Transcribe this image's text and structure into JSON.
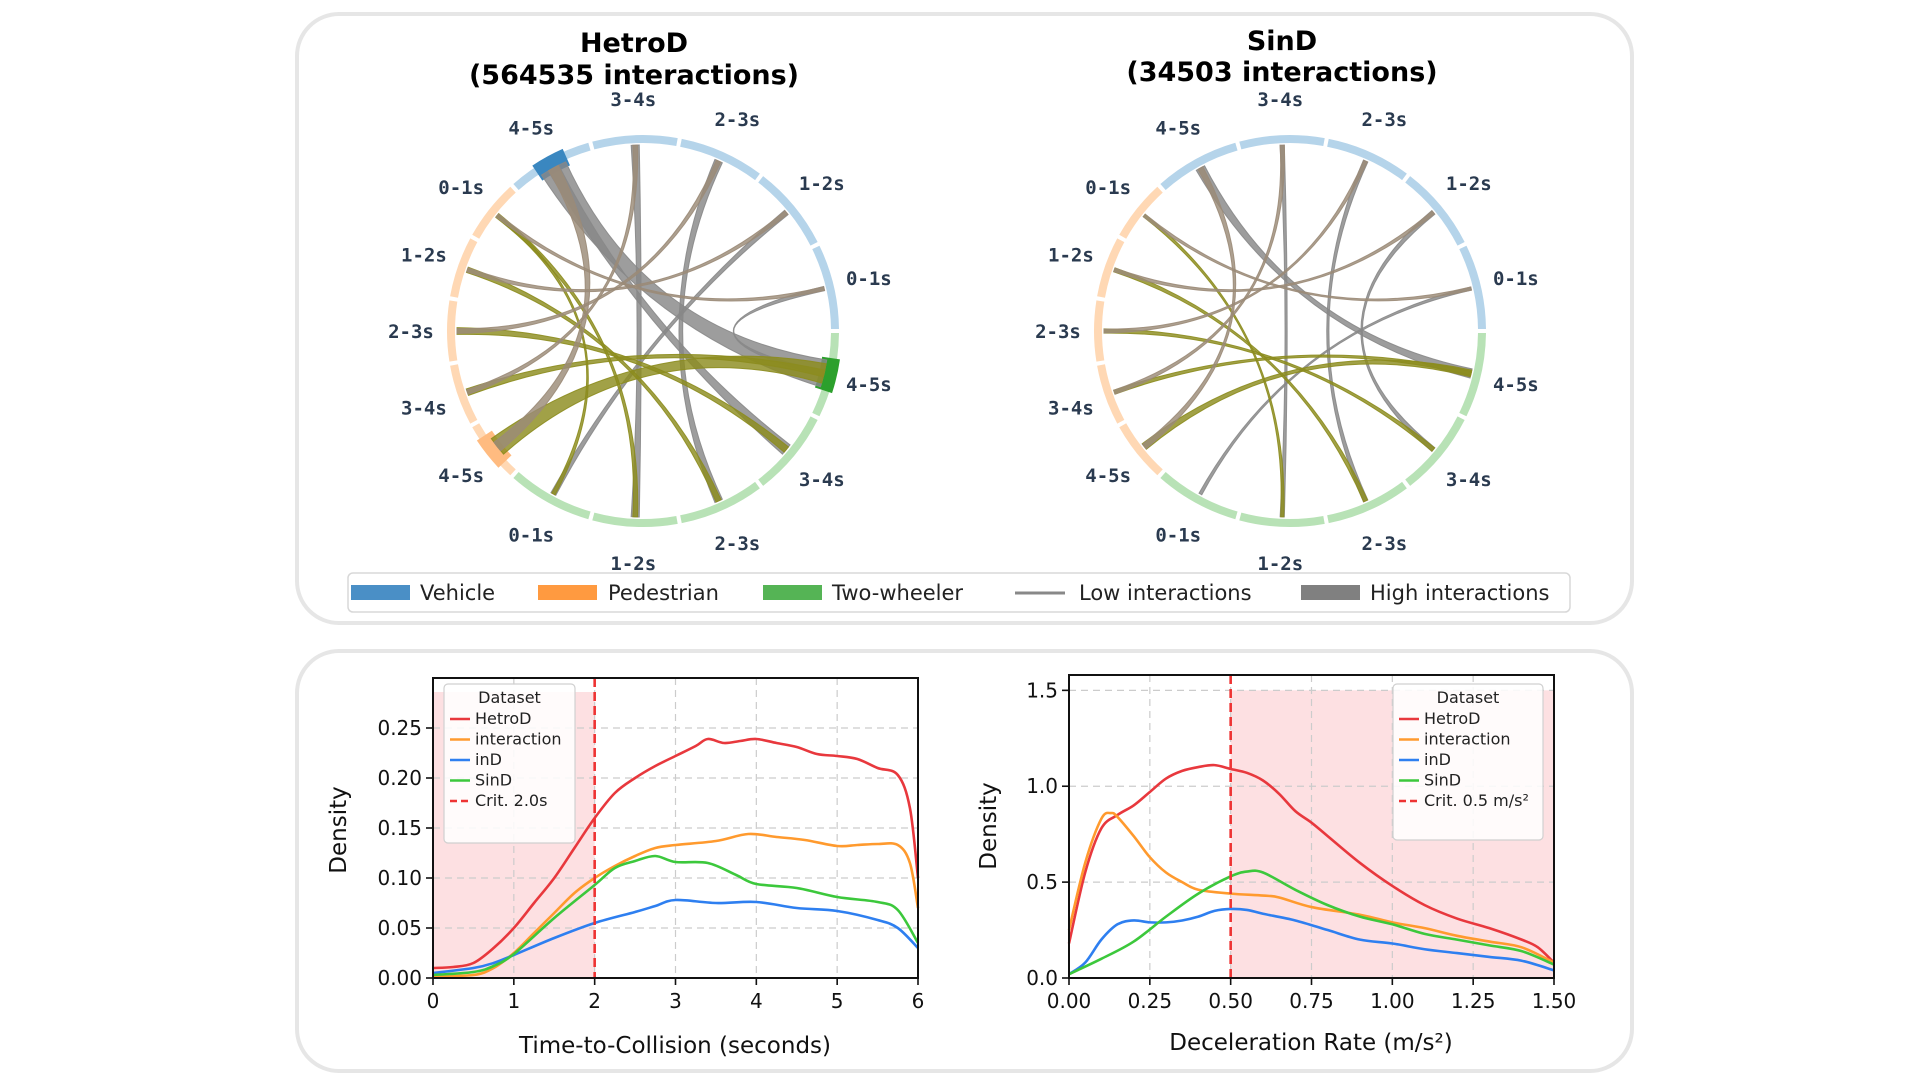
{
  "chord_diagrams": [
    {
      "title_line1": "HetroD",
      "title_line2": "(564535 interactions)",
      "highlight": [
        [
          "vehicle",
          4
        ],
        [
          "two_wheeler",
          4
        ],
        [
          "pedestrian",
          4
        ]
      ],
      "chords": [
        {
          "from": [
            "vehicle",
            4
          ],
          "to": [
            "two_wheeler",
            4
          ],
          "weight": 1.0
        },
        {
          "from": [
            "vehicle",
            4
          ],
          "to": [
            "two_wheeler",
            3
          ],
          "weight": 0.4
        },
        {
          "from": [
            "vehicle",
            3
          ],
          "to": [
            "two_wheeler",
            1
          ],
          "weight": 0.25
        },
        {
          "from": [
            "vehicle",
            2
          ],
          "to": [
            "two_wheeler",
            2
          ],
          "weight": 0.25
        },
        {
          "from": [
            "vehicle",
            1
          ],
          "to": [
            "two_wheeler",
            0
          ],
          "weight": 0.15
        },
        {
          "from": [
            "vehicle",
            0
          ],
          "to": [
            "two_wheeler",
            4
          ],
          "weight": 0.1
        },
        {
          "from": [
            "pedestrian",
            4
          ],
          "to": [
            "two_wheeler",
            4
          ],
          "weight": 0.7
        },
        {
          "from": [
            "pedestrian",
            0
          ],
          "to": [
            "two_wheeler",
            1
          ],
          "weight": 0.12
        },
        {
          "from": [
            "pedestrian",
            1
          ],
          "to": [
            "two_wheeler",
            2
          ],
          "weight": 0.15
        },
        {
          "from": [
            "pedestrian",
            2
          ],
          "to": [
            "two_wheeler",
            3
          ],
          "weight": 0.2
        },
        {
          "from": [
            "pedestrian",
            3
          ],
          "to": [
            "two_wheeler",
            4
          ],
          "weight": 0.2
        },
        {
          "from": [
            "pedestrian",
            0
          ],
          "to": [
            "two_wheeler",
            0
          ],
          "weight": 0.08
        },
        {
          "from": [
            "pedestrian",
            4
          ],
          "to": [
            "vehicle",
            4
          ],
          "weight": 0.35
        },
        {
          "from": [
            "pedestrian",
            0
          ],
          "to": [
            "vehicle",
            0
          ],
          "weight": 0.08
        },
        {
          "from": [
            "pedestrian",
            1
          ],
          "to": [
            "vehicle",
            1
          ],
          "weight": 0.1
        },
        {
          "from": [
            "pedestrian",
            2
          ],
          "to": [
            "vehicle",
            2
          ],
          "weight": 0.12
        },
        {
          "from": [
            "pedestrian",
            3
          ],
          "to": [
            "vehicle",
            3
          ],
          "weight": 0.12
        }
      ]
    },
    {
      "title_line1": "SinD",
      "title_line2": "(34503 interactions)",
      "highlight": [],
      "chords": [
        {
          "from": [
            "vehicle",
            4
          ],
          "to": [
            "two_wheeler",
            4
          ],
          "weight": 0.3
        },
        {
          "from": [
            "vehicle",
            3
          ],
          "to": [
            "two_wheeler",
            1
          ],
          "weight": 0.1
        },
        {
          "from": [
            "vehicle",
            2
          ],
          "to": [
            "two_wheeler",
            2
          ],
          "weight": 0.12
        },
        {
          "from": [
            "vehicle",
            1
          ],
          "to": [
            "two_wheeler",
            3
          ],
          "weight": 0.12
        },
        {
          "from": [
            "vehicle",
            0
          ],
          "to": [
            "two_wheeler",
            0
          ],
          "weight": 0.06
        },
        {
          "from": [
            "pedestrian",
            4
          ],
          "to": [
            "two_wheeler",
            4
          ],
          "weight": 0.2
        },
        {
          "from": [
            "pedestrian",
            0
          ],
          "to": [
            "two_wheeler",
            1
          ],
          "weight": 0.06
        },
        {
          "from": [
            "pedestrian",
            1
          ],
          "to": [
            "two_wheeler",
            2
          ],
          "weight": 0.1
        },
        {
          "from": [
            "pedestrian",
            2
          ],
          "to": [
            "two_wheeler",
            3
          ],
          "weight": 0.1
        },
        {
          "from": [
            "pedestrian",
            3
          ],
          "to": [
            "two_wheeler",
            4
          ],
          "weight": 0.1
        },
        {
          "from": [
            "pedestrian",
            4
          ],
          "to": [
            "vehicle",
            4
          ],
          "weight": 0.15
        },
        {
          "from": [
            "pedestrian",
            0
          ],
          "to": [
            "vehicle",
            0
          ],
          "weight": 0.06
        },
        {
          "from": [
            "pedestrian",
            1
          ],
          "to": [
            "vehicle",
            1
          ],
          "weight": 0.08
        },
        {
          "from": [
            "pedestrian",
            2
          ],
          "to": [
            "vehicle",
            2
          ],
          "weight": 0.08
        },
        {
          "from": [
            "pedestrian",
            3
          ],
          "to": [
            "vehicle",
            3
          ],
          "weight": 0.1
        }
      ]
    }
  ],
  "groups": {
    "vehicle": {
      "bins": [
        "0-1s",
        "1-2s",
        "2-3s",
        "3-4s",
        "4-5s"
      ],
      "color": "#b5d4ea",
      "strong": "#3a87c0"
    },
    "pedestrian": {
      "bins": [
        "0-1s",
        "1-2s",
        "2-3s",
        "3-4s",
        "4-5s"
      ],
      "color": "#ffd8b4",
      "strong": "#ffbb80"
    },
    "two_wheeler": {
      "bins": [
        "0-1s",
        "1-2s",
        "2-3s",
        "3-4s",
        "4-5s"
      ],
      "color": "#b8e2b6",
      "strong": "#2ca02c"
    }
  },
  "chord_colors": {
    "vehicle-two_wheeler": "#2e9478",
    "pedestrian-two_wheeler": "#8c8c1e",
    "pedestrian-vehicle": "#9b8b78"
  },
  "legend": {
    "items": [
      {
        "label": "Vehicle",
        "kind": "patch",
        "color": "#4a8fc6"
      },
      {
        "label": "Pedestrian",
        "kind": "patch",
        "color": "#ff9a40"
      },
      {
        "label": "Two-wheeler",
        "kind": "patch",
        "color": "#55b455"
      },
      {
        "label": "Low interactions",
        "kind": "line",
        "color": "#888888"
      },
      {
        "label": "High interactions",
        "kind": "patch",
        "color": "#808080"
      }
    ]
  },
  "chart_data": [
    {
      "type": "line",
      "xlabel": "Time-to-Collision (seconds)",
      "ylabel": "Density",
      "xlim": [
        0,
        6
      ],
      "ylim": [
        0,
        0.3
      ],
      "xticks": [
        0,
        1,
        2,
        3,
        4,
        5,
        6
      ],
      "xtick_labels": [
        "0",
        "1",
        "2",
        "3",
        "4",
        "5",
        "6"
      ],
      "yticks": [
        0,
        0.05,
        0.1,
        0.15,
        0.2,
        0.25
      ],
      "ytick_labels": [
        "0.00",
        "0.05",
        "0.10",
        "0.15",
        "0.20",
        "0.25"
      ],
      "grid": true,
      "legend_title": "Dataset",
      "legend_position": "upper-left",
      "critical": {
        "x": 2.0,
        "label": "Crit. 2.0s",
        "shade": [
          0,
          2
        ],
        "color": "#ee3333"
      },
      "series": [
        {
          "name": "HetroD",
          "color": "#e8383d",
          "x": [
            0,
            0.25,
            0.5,
            0.75,
            1,
            1.25,
            1.5,
            1.75,
            2,
            2.25,
            2.5,
            2.75,
            3,
            3.25,
            3.4,
            3.6,
            3.8,
            4,
            4.25,
            4.5,
            4.75,
            5,
            5.25,
            5.5,
            5.75,
            5.9,
            6
          ],
          "y": [
            0.01,
            0.011,
            0.015,
            0.03,
            0.05,
            0.075,
            0.1,
            0.13,
            0.16,
            0.185,
            0.2,
            0.212,
            0.222,
            0.232,
            0.239,
            0.235,
            0.237,
            0.239,
            0.235,
            0.231,
            0.224,
            0.222,
            0.219,
            0.21,
            0.203,
            0.17,
            0.1
          ]
        },
        {
          "name": "interaction",
          "color": "#ff9a2e",
          "x": [
            0,
            0.5,
            0.75,
            1,
            1.25,
            1.5,
            1.75,
            2,
            2.25,
            2.5,
            2.75,
            3,
            3.5,
            3.9,
            4.25,
            4.6,
            5,
            5.25,
            5.5,
            5.75,
            5.9,
            6
          ],
          "y": [
            0.002,
            0.003,
            0.01,
            0.025,
            0.045,
            0.065,
            0.085,
            0.1,
            0.112,
            0.122,
            0.13,
            0.133,
            0.137,
            0.144,
            0.141,
            0.138,
            0.132,
            0.133,
            0.134,
            0.133,
            0.115,
            0.07
          ]
        },
        {
          "name": "inD",
          "color": "#2e7ff0",
          "x": [
            0,
            0.5,
            0.75,
            1,
            1.5,
            2,
            2.5,
            2.75,
            3,
            3.5,
            4,
            4.5,
            5,
            5.5,
            5.75,
            6
          ],
          "y": [
            0.005,
            0.01,
            0.015,
            0.023,
            0.04,
            0.055,
            0.066,
            0.072,
            0.078,
            0.075,
            0.076,
            0.07,
            0.067,
            0.058,
            0.05,
            0.03
          ]
        },
        {
          "name": "SinD",
          "color": "#3cc83c",
          "x": [
            0,
            0.5,
            0.75,
            1,
            1.5,
            2,
            2.25,
            2.5,
            2.75,
            3,
            3.4,
            3.75,
            4,
            4.5,
            5,
            5.5,
            5.75,
            6
          ],
          "y": [
            0.003,
            0.006,
            0.012,
            0.024,
            0.06,
            0.093,
            0.11,
            0.117,
            0.122,
            0.116,
            0.115,
            0.103,
            0.094,
            0.09,
            0.081,
            0.076,
            0.068,
            0.035
          ]
        }
      ]
    },
    {
      "type": "line",
      "xlabel": "Deceleration Rate (m/s²)",
      "ylabel": "Density",
      "xlim": [
        0,
        1.5
      ],
      "ylim": [
        0,
        1.58
      ],
      "xticks": [
        0,
        0.25,
        0.5,
        0.75,
        1.0,
        1.25,
        1.5
      ],
      "xtick_labels": [
        "0.00",
        "0.25",
        "0.50",
        "0.75",
        "1.00",
        "1.25",
        "1.50"
      ],
      "yticks": [
        0,
        0.5,
        1.0,
        1.5
      ],
      "ytick_labels": [
        "0.0",
        "0.5",
        "1.0",
        "1.5"
      ],
      "grid": true,
      "legend_title": "Dataset",
      "legend_position": "upper-right",
      "critical": {
        "x": 0.5,
        "label": "Crit. 0.5 m/s²",
        "shade": [
          0.5,
          1.5
        ],
        "color": "#ee3333"
      },
      "series": [
        {
          "name": "HetroD",
          "color": "#e8383d",
          "x": [
            0,
            0.05,
            0.1,
            0.15,
            0.2,
            0.25,
            0.3,
            0.35,
            0.4,
            0.45,
            0.5,
            0.55,
            0.6,
            0.65,
            0.7,
            0.75,
            0.8,
            0.9,
            1.0,
            1.1,
            1.2,
            1.3,
            1.4,
            1.45,
            1.5
          ],
          "y": [
            0.18,
            0.55,
            0.78,
            0.85,
            0.9,
            0.97,
            1.04,
            1.08,
            1.1,
            1.11,
            1.09,
            1.07,
            1.03,
            0.96,
            0.87,
            0.81,
            0.74,
            0.6,
            0.48,
            0.38,
            0.31,
            0.26,
            0.2,
            0.16,
            0.08
          ]
        },
        {
          "name": "interaction",
          "color": "#ff9a2e",
          "x": [
            0,
            0.05,
            0.1,
            0.13,
            0.15,
            0.2,
            0.25,
            0.3,
            0.35,
            0.4,
            0.5,
            0.6,
            0.65,
            0.75,
            0.9,
            1.0,
            1.1,
            1.2,
            1.3,
            1.4,
            1.5
          ],
          "y": [
            0.25,
            0.6,
            0.83,
            0.86,
            0.84,
            0.74,
            0.63,
            0.55,
            0.5,
            0.46,
            0.44,
            0.43,
            0.42,
            0.37,
            0.33,
            0.29,
            0.26,
            0.22,
            0.19,
            0.16,
            0.08
          ]
        },
        {
          "name": "inD",
          "color": "#2e7ff0",
          "x": [
            0,
            0.05,
            0.1,
            0.15,
            0.2,
            0.25,
            0.3,
            0.35,
            0.4,
            0.45,
            0.5,
            0.55,
            0.6,
            0.7,
            0.8,
            0.9,
            1.0,
            1.1,
            1.2,
            1.3,
            1.4,
            1.5
          ],
          "y": [
            0.02,
            0.08,
            0.2,
            0.28,
            0.3,
            0.29,
            0.29,
            0.3,
            0.32,
            0.35,
            0.36,
            0.355,
            0.335,
            0.3,
            0.25,
            0.2,
            0.18,
            0.15,
            0.13,
            0.11,
            0.09,
            0.04
          ]
        },
        {
          "name": "SinD",
          "color": "#3cc83c",
          "x": [
            0,
            0.1,
            0.2,
            0.3,
            0.4,
            0.5,
            0.55,
            0.6,
            0.7,
            0.8,
            0.9,
            1.0,
            1.1,
            1.2,
            1.3,
            1.4,
            1.5
          ],
          "y": [
            0.02,
            0.1,
            0.19,
            0.32,
            0.44,
            0.53,
            0.555,
            0.55,
            0.46,
            0.38,
            0.32,
            0.28,
            0.23,
            0.2,
            0.17,
            0.14,
            0.07
          ]
        }
      ]
    }
  ]
}
